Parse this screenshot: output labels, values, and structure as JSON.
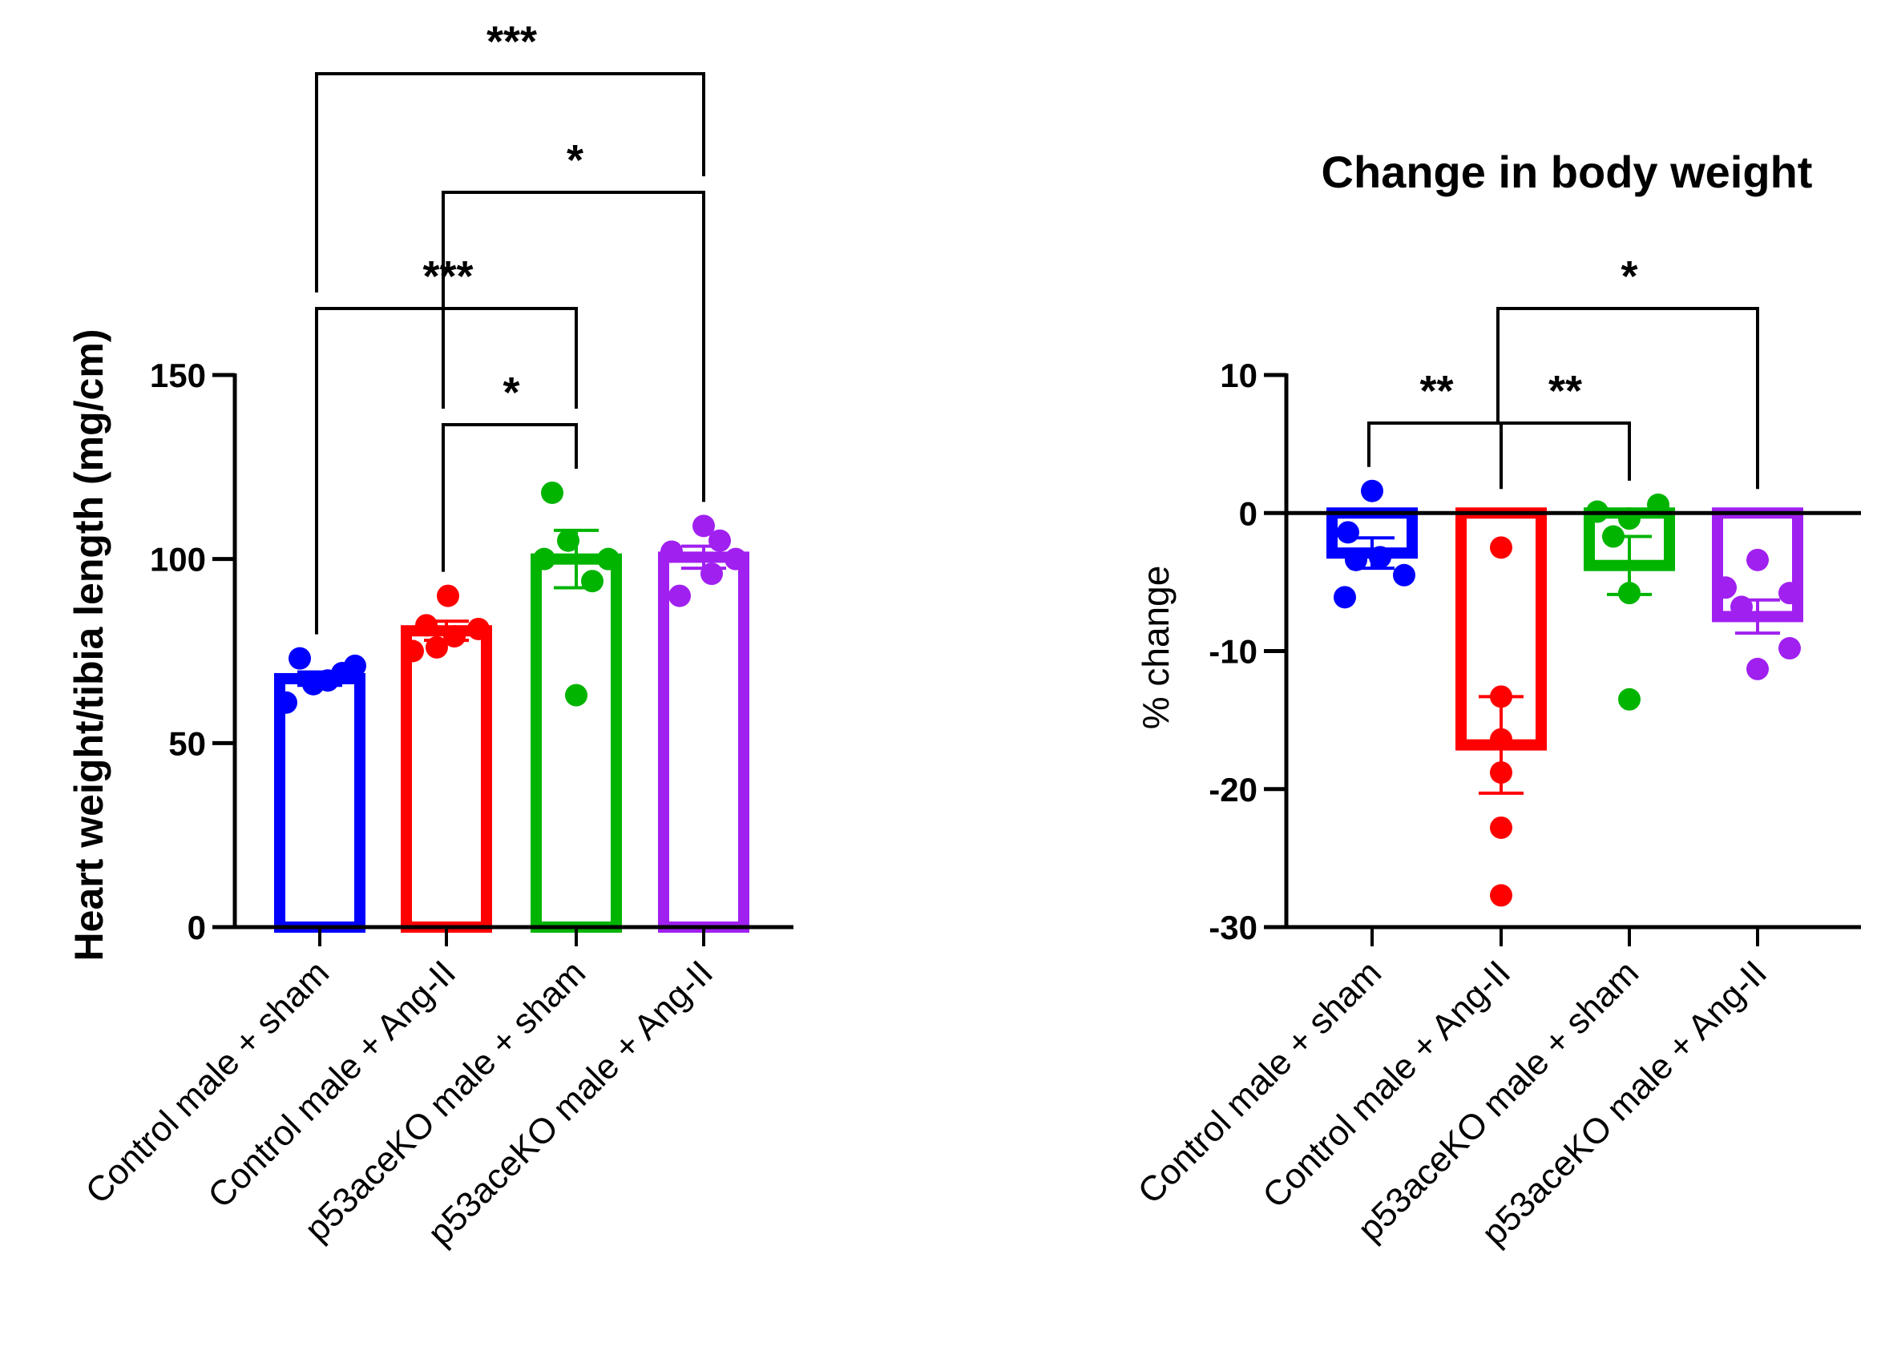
{
  "chart_data": [
    {
      "type": "bar",
      "title": "",
      "xlabel": "",
      "ylabel": "Heart weight/tibia length (mg/cm)",
      "ylim": [
        0,
        150
      ],
      "yticks": [
        0,
        50,
        100,
        150
      ],
      "categories": [
        "Control male + sham",
        "Control male + Ang-II",
        "p53aceKO male + sham",
        "p53aceKO male + Ang-II"
      ],
      "colors": [
        "#0000ff",
        "#ff0000",
        "#00b400",
        "#a020f0"
      ],
      "values": [
        67.5,
        80.5,
        100,
        100.5
      ],
      "sem": [
        1.8,
        2.6,
        7.8,
        3.0
      ],
      "points": [
        [
          61,
          66,
          67,
          69,
          71,
          73
        ],
        [
          75,
          76,
          79,
          81,
          82,
          90
        ],
        [
          63,
          94,
          100,
          100,
          105,
          118
        ],
        [
          90,
          96,
          100,
          102,
          105,
          109
        ]
      ],
      "significance": [
        {
          "from": 1,
          "to": 2,
          "label": "*"
        },
        {
          "from": 0,
          "to": 2,
          "label": "***"
        },
        {
          "from": 1,
          "to": 3,
          "label": "*"
        },
        {
          "from": 0,
          "to": 3,
          "label": "***"
        }
      ]
    },
    {
      "type": "bar",
      "title": "Change in body weight",
      "xlabel": "",
      "ylabel": "% change",
      "ylim": [
        -30,
        10
      ],
      "yticks": [
        -30,
        -20,
        -10,
        0,
        10
      ],
      "categories": [
        "Control male + sham",
        "Control male + Ang-II",
        "p53aceKO male + sham",
        "p53aceKO male + Ang-II"
      ],
      "colors": [
        "#0000ff",
        "#ff0000",
        "#00b400",
        "#a020f0"
      ],
      "values": [
        -2.9,
        -16.8,
        -3.8,
        -7.5
      ],
      "sem": [
        1.1,
        3.5,
        2.1,
        1.2
      ],
      "points": [
        [
          1.6,
          -1.4,
          -3.2,
          -3.4,
          -4.5,
          -6.1
        ],
        [
          -2.5,
          -13.3,
          -16.4,
          -18.8,
          -22.8,
          -27.7
        ],
        [
          0.6,
          0.1,
          -1.7,
          -5.8,
          -13.5,
          -0.4
        ],
        [
          -3.4,
          -5.4,
          -5.8,
          -6.8,
          -9.8,
          -11.3
        ]
      ],
      "significance": [
        {
          "from": 0,
          "to": 1,
          "label": "**"
        },
        {
          "from": 1,
          "to": 2,
          "label": "**"
        },
        {
          "from": 1,
          "to": 3,
          "label": "*"
        }
      ]
    }
  ]
}
